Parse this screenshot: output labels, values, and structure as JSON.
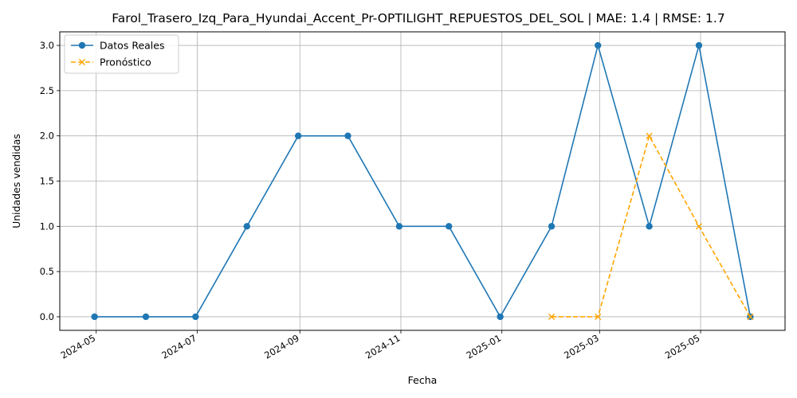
{
  "chart_data": {
    "type": "line",
    "title": "Farol_Trasero_Izq_Para_Hyundai_Accent_Pr-OPTILIGHT_REPUESTOS_DEL_SOL | MAE: 1.4 | RMSE: 1.7",
    "xlabel": "Fecha",
    "ylabel": "Unidades vendidas",
    "grid": true,
    "legend_position": "top-left",
    "xlim": [
      "2024-04-09",
      "2025-06-21"
    ],
    "ylim": [
      -0.15,
      3.15
    ],
    "x_ticks": [
      "2024-05",
      "2024-07",
      "2024-09",
      "2024-11",
      "2025-01",
      "2025-03",
      "2025-05"
    ],
    "y_ticks": [
      "0.0",
      "0.5",
      "1.0",
      "1.5",
      "2.0",
      "2.5",
      "3.0"
    ],
    "y_tick_values": [
      0,
      0.5,
      1.0,
      1.5,
      2.0,
      2.5,
      3.0
    ],
    "series": [
      {
        "name": "Datos Reales",
        "color": "#1f77b4",
        "marker": "circle",
        "line_style": "solid",
        "x": [
          "2024-04-30",
          "2024-05-31",
          "2024-06-30",
          "2024-07-31",
          "2024-08-31",
          "2024-09-30",
          "2024-10-31",
          "2024-11-30",
          "2024-12-31",
          "2025-01-31",
          "2025-02-28",
          "2025-03-31",
          "2025-04-30",
          "2025-05-31"
        ],
        "values": [
          0,
          0,
          0,
          1,
          2,
          2,
          1,
          1,
          0,
          1,
          3,
          1,
          3,
          0
        ]
      },
      {
        "name": "Pronóstico",
        "color": "#ffa500",
        "marker": "x",
        "line_style": "dashed",
        "x": [
          "2025-01-31",
          "2025-02-28",
          "2025-03-31",
          "2025-04-30",
          "2025-05-31"
        ],
        "values": [
          0,
          0,
          2,
          1,
          0
        ]
      }
    ]
  }
}
